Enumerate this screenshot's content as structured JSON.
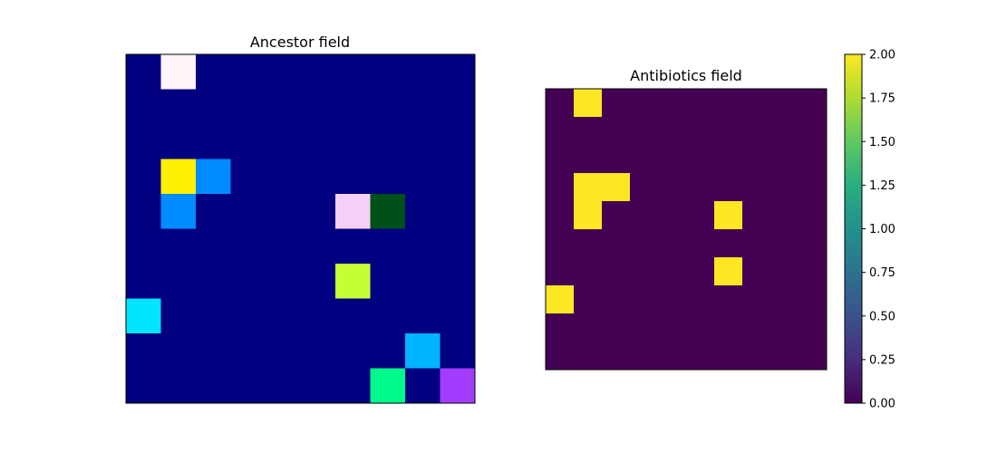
{
  "chart_data": [
    {
      "type": "heatmap",
      "title": "Ancestor field",
      "grid_size": [
        10,
        10
      ],
      "background_color": "#000080",
      "cells": [
        {
          "row": 0,
          "col": 1,
          "color": "#fff5fa"
        },
        {
          "row": 3,
          "col": 1,
          "color": "#ffef00"
        },
        {
          "row": 3,
          "col": 2,
          "color": "#008cff"
        },
        {
          "row": 4,
          "col": 1,
          "color": "#008cff"
        },
        {
          "row": 4,
          "col": 6,
          "color": "#f5cff5"
        },
        {
          "row": 4,
          "col": 7,
          "color": "#00501a"
        },
        {
          "row": 6,
          "col": 6,
          "color": "#c4ff34"
        },
        {
          "row": 7,
          "col": 0,
          "color": "#00e5ff"
        },
        {
          "row": 8,
          "col": 8,
          "color": "#00b4ff"
        },
        {
          "row": 9,
          "col": 7,
          "color": "#00fa8c"
        },
        {
          "row": 9,
          "col": 9,
          "color": "#a23dff"
        }
      ],
      "axes_visible": false
    },
    {
      "type": "heatmap",
      "title": "Antibiotics field",
      "grid_size": [
        10,
        10
      ],
      "colormap": "viridis",
      "vmin": 0,
      "vmax": 2,
      "cells": [
        {
          "row": 0,
          "col": 1,
          "value": 2
        },
        {
          "row": 3,
          "col": 1,
          "value": 2
        },
        {
          "row": 3,
          "col": 2,
          "value": 2
        },
        {
          "row": 4,
          "col": 1,
          "value": 2
        },
        {
          "row": 4,
          "col": 6,
          "value": 2
        },
        {
          "row": 6,
          "col": 6,
          "value": 2
        },
        {
          "row": 7,
          "col": 0,
          "value": 2
        }
      ],
      "default_value": 0,
      "colorbar": {
        "ticks": [
          0.0,
          0.25,
          0.5,
          0.75,
          1.0,
          1.25,
          1.5,
          1.75,
          2.0
        ],
        "tick_labels": [
          "0.00",
          "0.25",
          "0.50",
          "0.75",
          "1.00",
          "1.25",
          "1.50",
          "1.75",
          "2.00"
        ]
      },
      "axes_visible": false
    }
  ]
}
